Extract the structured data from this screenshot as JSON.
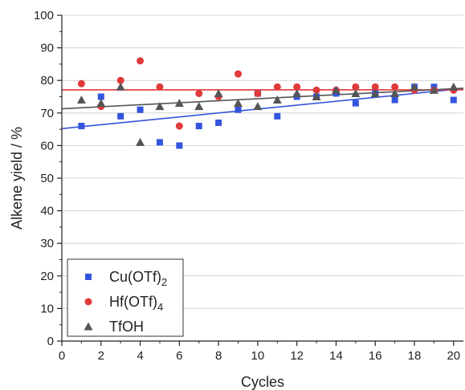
{
  "chart_data": {
    "type": "scatter",
    "xlabel": "Cycles",
    "ylabel": "Alkene yield / %",
    "xlim": [
      0,
      20.5
    ],
    "ylim": [
      0,
      100
    ],
    "x_ticks": [
      0,
      2,
      4,
      6,
      8,
      10,
      12,
      14,
      16,
      18,
      20
    ],
    "y_ticks": [
      0,
      10,
      20,
      30,
      40,
      50,
      60,
      70,
      80,
      90,
      100
    ],
    "grid": "horizontal",
    "legend_position": "bottom-left",
    "series": [
      {
        "name": "Cu(OTf)",
        "name_subscript": "2",
        "marker": "square",
        "color": "#3355dd",
        "x": [
          1,
          2,
          3,
          4,
          5,
          6,
          7,
          8,
          9,
          10,
          11,
          12,
          13,
          14,
          15,
          16,
          17,
          18,
          19,
          20
        ],
        "y": [
          66,
          75,
          69,
          71,
          61,
          60,
          66,
          67,
          71,
          76,
          69,
          75,
          75,
          76,
          73,
          76,
          74,
          78,
          78,
          74
        ],
        "trend": {
          "x": [
            0,
            20.5
          ],
          "y": [
            65.2,
            77.5
          ]
        }
      },
      {
        "name": "Hf(OTf)",
        "name_subscript": "4",
        "marker": "circle",
        "color": "#e03a3a",
        "x": [
          1,
          2,
          3,
          4,
          5,
          6,
          7,
          8,
          9,
          10,
          11,
          12,
          13,
          14,
          15,
          16,
          17,
          18,
          19,
          20
        ],
        "y": [
          79,
          72,
          80,
          86,
          78,
          66,
          76,
          75,
          82,
          76,
          78,
          78,
          77,
          77,
          78,
          78,
          78,
          77,
          77,
          77
        ],
        "trend": {
          "x": [
            0,
            20.5
          ],
          "y": [
            77.1,
            77.1
          ]
        }
      },
      {
        "name": "TfOH",
        "name_subscript": "",
        "marker": "triangle",
        "color": "#555555",
        "x": [
          1,
          2,
          3,
          4,
          5,
          6,
          7,
          8,
          9,
          10,
          11,
          12,
          13,
          14,
          15,
          16,
          17,
          18,
          19,
          20
        ],
        "y": [
          74,
          73,
          78,
          61,
          72,
          73,
          72,
          76,
          73,
          72,
          74,
          76,
          75,
          77,
          76,
          76,
          76,
          78,
          77,
          78
        ],
        "trend": {
          "x": [
            0,
            20.5
          ],
          "y": [
            71.3,
            77.6
          ]
        }
      }
    ]
  }
}
